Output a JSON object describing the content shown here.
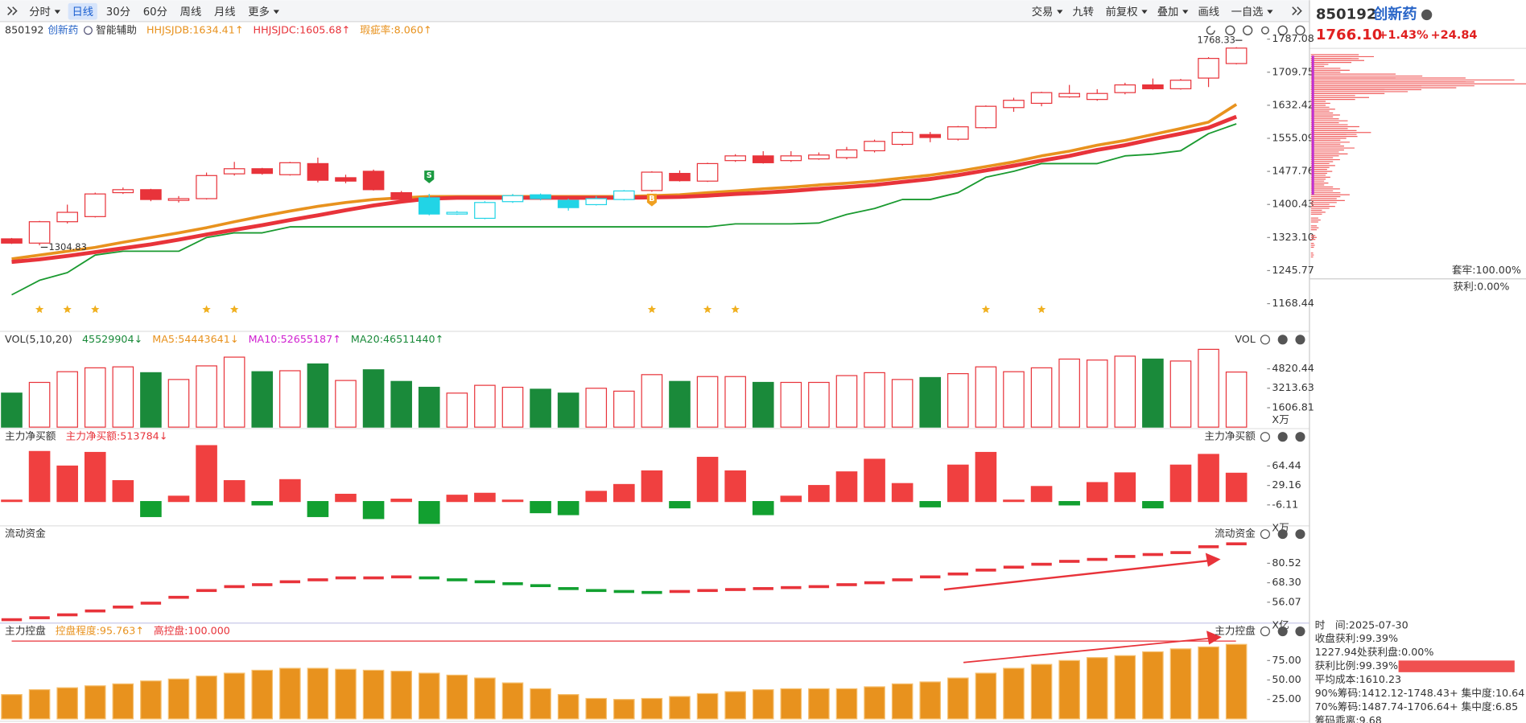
{
  "toolbar": {
    "left": [
      "分时",
      "日线",
      "30分",
      "60分",
      "周线",
      "月线",
      "更多"
    ],
    "right": [
      "交易",
      "九转",
      "前复权",
      "叠加",
      "画线",
      "一自选"
    ]
  },
  "quote": {
    "code": "850192",
    "name": "创新药",
    "price": "1766.10",
    "change_pct": "+1.43%",
    "change": "+24.84"
  },
  "chip_stats": {
    "trapped": "套牢:100.00%",
    "profit": "获利:0.00%",
    "lines": [
      "时　间:2025-07-30",
      "收盘获利:99.39%",
      "1227.94处获利盘:0.00%"
    ],
    "profit_ratio": {
      "label": "获利比例:99.39%",
      "value": 99.39
    },
    "more_lines": [
      "平均成本:1610.23",
      "90%筹码:1412.12-1748.43+ 集中度:10.64",
      "70%筹码:1487.74-1706.64+ 集中度:6.85",
      "筹码乖离:9.68"
    ]
  },
  "chart_data": [
    {
      "type": "candlestick",
      "code": "850192",
      "name": "创新药",
      "indicator": "智能辅助",
      "legend": [
        {
          "label": "HHJSJDB:1634.41↑",
          "color": "#e8921e"
        },
        {
          "label": "HHJSJDC:1605.68↑",
          "color": "#e8333a"
        },
        {
          "label": "瑕疵率:8.060↑",
          "color": "#e8921e"
        }
      ],
      "open": [
        1320,
        1310,
        1360,
        1372,
        1428,
        1435,
        1410,
        1414,
        1472,
        1484,
        1470,
        1496,
        1463,
        1478,
        1428,
        1416,
        1378,
        1368,
        1407,
        1423,
        1410,
        1400,
        1412,
        1433,
        1473,
        1455,
        1503,
        1514,
        1503,
        1507,
        1510,
        1526,
        1541,
        1564,
        1553,
        1580,
        1627,
        1637,
        1652,
        1646,
        1662,
        1680,
        1671,
        1696,
        1730
      ],
      "high": [
        1322,
        1362,
        1400,
        1428,
        1440,
        1437,
        1420,
        1475,
        1500,
        1486,
        1500,
        1510,
        1470,
        1482,
        1432,
        1425,
        1385,
        1408,
        1425,
        1426,
        1414,
        1420,
        1434,
        1478,
        1480,
        1498,
        1518,
        1525,
        1525,
        1522,
        1535,
        1552,
        1572,
        1570,
        1584,
        1632,
        1650,
        1664,
        1680,
        1670,
        1685,
        1695,
        1694,
        1745,
        1768.33
      ],
      "low": [
        1308,
        1304.83,
        1356,
        1370,
        1425,
        1408,
        1405,
        1412,
        1468,
        1470,
        1468,
        1452,
        1450,
        1433,
        1410,
        1375,
        1376,
        1366,
        1404,
        1410,
        1386,
        1398,
        1410,
        1430,
        1454,
        1453,
        1500,
        1496,
        1500,
        1505,
        1506,
        1522,
        1538,
        1546,
        1550,
        1578,
        1617,
        1630,
        1650,
        1643,
        1658,
        1669,
        1669,
        1675,
        1728
      ],
      "close": [
        1310,
        1360,
        1382,
        1425,
        1435,
        1412,
        1414,
        1468,
        1484,
        1473,
        1498,
        1457,
        1455,
        1435,
        1412,
        1378,
        1382,
        1405,
        1421,
        1414,
        1393,
        1414,
        1432,
        1476,
        1456,
        1496,
        1514,
        1498,
        1514,
        1516,
        1528,
        1548,
        1569,
        1557,
        1582,
        1630,
        1644,
        1662,
        1660,
        1660,
        1680,
        1671,
        1691,
        1742,
        1766.1
      ],
      "colors": [
        "#e8333a",
        "#e8333a",
        "#e8333a",
        "#e8333a",
        "#e8333a",
        "#e8333a",
        "#e8333a",
        "#e8333a",
        "#e8333a",
        "#e8333a",
        "#e8333a",
        "#e8333a",
        "#e8333a",
        "#e8333a",
        "#e8333a",
        "#21d4e6",
        "#21d4e6",
        "#21d4e6",
        "#21d4e6",
        "#21d4e6",
        "#21d4e6",
        "#21d4e6",
        "#21d4e6",
        "#e8333a",
        "#e8333a",
        "#e8333a",
        "#e8333a",
        "#e8333a",
        "#e8333a",
        "#e8333a",
        "#e8333a",
        "#e8333a",
        "#e8333a",
        "#e8333a",
        "#e8333a",
        "#e8333a",
        "#e8333a",
        "#e8333a",
        "#e8333a",
        "#e8333a",
        "#e8333a",
        "#e8333a",
        "#e8333a",
        "#e8333a",
        "#e8333a"
      ],
      "series": [
        {
          "name": "HHJSJDB",
          "color": "#e8921e",
          "width": 3,
          "values": [
            1273,
            1282,
            1291,
            1300,
            1312,
            1323,
            1334,
            1346,
            1360,
            1373,
            1385,
            1396,
            1405,
            1412,
            1416,
            1419,
            1419,
            1419,
            1419,
            1419,
            1419,
            1419,
            1419,
            1421,
            1423,
            1428,
            1432,
            1437,
            1441,
            1446,
            1450,
            1455,
            1462,
            1469,
            1478,
            1489,
            1500,
            1514,
            1525,
            1539,
            1550,
            1564,
            1578,
            1593,
            1634.41
          ]
        },
        {
          "name": "HHJSJDC",
          "color": "#e8333a",
          "width": 4,
          "values": [
            1266,
            1272,
            1280,
            1289,
            1298,
            1307,
            1318,
            1330,
            1341,
            1352,
            1364,
            1375,
            1387,
            1398,
            1407,
            1414,
            1416,
            1416,
            1416,
            1416,
            1416,
            1416,
            1416,
            1417,
            1418,
            1421,
            1425,
            1428,
            1432,
            1437,
            1441,
            1446,
            1453,
            1460,
            1469,
            1480,
            1491,
            1503,
            1514,
            1528,
            1539,
            1553,
            1566,
            1580,
            1605.68
          ]
        },
        {
          "color": "#1a9a30",
          "width": 1.5,
          "values": [
            1189,
            1223,
            1241,
            1282,
            1291,
            1291,
            1291,
            1323,
            1334,
            1334,
            1348,
            1348,
            1348,
            1348,
            1348,
            1348,
            1348,
            1348,
            1348,
            1348,
            1348,
            1348,
            1348,
            1348,
            1348,
            1348,
            1355,
            1355,
            1355,
            1357,
            1377,
            1391,
            1412,
            1412,
            1428,
            1464,
            1478,
            1496,
            1496,
            1496,
            1514,
            1518,
            1526,
            1566,
            1589
          ]
        }
      ],
      "signals": [
        {
          "label": "S",
          "index": 15,
          "color": "#1a9a40"
        },
        {
          "label": "B",
          "index": 23,
          "color": "#f0a020"
        }
      ],
      "stars": [
        1,
        2,
        3,
        7,
        8,
        23,
        25,
        26,
        35,
        37
      ],
      "ylim": [
        1168.44,
        1787.08
      ],
      "yticks": [
        1168.44,
        1245.77,
        {
          "value": 1323.1,
          "label": "1323.10"
        },
        1400.43,
        1477.76,
        1555.09,
        1632.42,
        1709.75,
        1787.08
      ]
    },
    {
      "type": "bar",
      "title": "VOL(5,10,20)",
      "right_title": "VOL",
      "unit": "X万",
      "legend": [
        {
          "label": "45529904↓",
          "color": "#1a8a3a"
        },
        {
          "label": "MA5:54443641↓",
          "color": "#e8921e"
        },
        {
          "label": "MA10:52655187↑",
          "color": "#d020d0"
        },
        {
          "label": "MA20:46511440↑",
          "color": "#1a8a3a"
        }
      ],
      "values": [
        2812,
        3696,
        4580,
        4900,
        4981,
        4499,
        3937,
        5061,
        5784,
        4580,
        4660,
        5222,
        3856,
        4740,
        3776,
        3294,
        2812,
        3455,
        3294,
        3133,
        2812,
        3213,
        2973,
        4338,
        3776,
        4178,
        4178,
        3696,
        3696,
        3696,
        4258,
        4499,
        3937,
        4097,
        4419,
        4981,
        4580,
        4900,
        5624,
        5543,
        5865,
        5624,
        5463,
        6427,
        4553
      ],
      "colors": [
        "#1a8a3a",
        "#e8333a",
        "#e8333a",
        "#e8333a",
        "#e8333a",
        "#1a8a3a",
        "#e8333a",
        "#e8333a",
        "#e8333a",
        "#1a8a3a",
        "#e8333a",
        "#1a8a3a",
        "#e8333a",
        "#1a8a3a",
        "#1a8a3a",
        "#1a8a3a",
        "#e8333a",
        "#e8333a",
        "#e8333a",
        "#1a8a3a",
        "#1a8a3a",
        "#e8333a",
        "#e8333a",
        "#e8333a",
        "#1a8a3a",
        "#e8333a",
        "#e8333a",
        "#1a8a3a",
        "#e8333a",
        "#e8333a",
        "#e8333a",
        "#e8333a",
        "#e8333a",
        "#1a8a3a",
        "#e8333a",
        "#e8333a",
        "#e8333a",
        "#e8333a",
        "#e8333a",
        "#e8333a",
        "#e8333a",
        "#1a8a3a",
        "#e8333a",
        "#e8333a",
        "#e8333a"
      ],
      "down_color": "#1a8a3a",
      "ylim": [
        0,
        6427.24
      ],
      "yticks": [
        1606.81,
        3213.63,
        4820.44
      ]
    },
    {
      "type": "bar",
      "title": "主力净买额",
      "right_title": "主力净买额",
      "unit": "X万",
      "legend": [
        {
          "label": "主力净买额:513784↓",
          "color": "#e8333a"
        }
      ],
      "values": [
        2.6,
        90.8,
        64.4,
        89.1,
        37.9,
        -27.3,
        9.7,
        101.4,
        37.9,
        -6.2,
        39.7,
        -27.3,
        13.2,
        -30.9,
        4.4,
        -39.7,
        11.5,
        15.0,
        2.6,
        -20.3,
        -23.8,
        18.5,
        30.9,
        55.6,
        -11.5,
        80.2,
        55.6,
        -23.8,
        9.7,
        29.1,
        53.8,
        76.7,
        32.6,
        -9.7,
        66.1,
        89.1,
        2.6,
        27.3,
        -6.2,
        34.4,
        52.0,
        -11.5,
        66.1,
        85.5,
        51.38
      ],
      "up_color": "#f04040",
      "down_color": "#12a030",
      "ylim": [
        -43.2,
        106.7
      ],
      "yticks": [
        -6.11,
        29.16,
        64.44
      ]
    },
    {
      "type": "step-segment",
      "title": "流动资金",
      "right_title": "流动资金",
      "unit": "X亿",
      "values": [
        45.08,
        46.3,
        48.14,
        50.58,
        53.02,
        55.47,
        59.15,
        63.41,
        65.86,
        67.08,
        68.91,
        70.13,
        71.35,
        71.35,
        71.97,
        71.35,
        70.13,
        68.91,
        67.69,
        66.47,
        64.63,
        63.41,
        62.8,
        62.19,
        62.8,
        63.41,
        64.02,
        64.63,
        65.24,
        65.86,
        67.08,
        68.3,
        70.13,
        71.97,
        73.8,
        76.24,
        78.08,
        79.91,
        81.74,
        82.96,
        84.8,
        86.02,
        87.24,
        90.91,
        92.74
      ],
      "up_color": "#e8333a",
      "down_color": "#12a030",
      "ylim": [
        43.25,
        95.18
      ],
      "yticks": [
        56.07,
        {
          "value": 68.3,
          "label": "68.30"
        },
        80.52
      ]
    },
    {
      "type": "bar",
      "title": "主力控盘",
      "right_title": "主力控盘",
      "legend": [
        {
          "label": "控盘程度:95.763↑",
          "color": "#e8921e"
        },
        {
          "label": "高控盘:100.000",
          "color": "#e8333a"
        }
      ],
      "values": [
        31.25,
        37.5,
        40,
        42.5,
        45,
        48.75,
        51.25,
        55,
        58.75,
        62.5,
        65,
        65,
        63.75,
        62.5,
        61.25,
        58.75,
        56.25,
        52.5,
        46.25,
        38.75,
        31.25,
        26.25,
        25,
        26.25,
        28.75,
        32.5,
        35,
        37.5,
        38.75,
        38.75,
        38.75,
        41.25,
        45,
        47.5,
        52.5,
        58.75,
        65,
        70,
        75,
        78.75,
        81.25,
        86.25,
        90,
        92.5,
        95.763
      ],
      "color": "#e8921e",
      "ylim": [
        0,
        105
      ],
      "yticks": [
        {
          "value": 25,
          "label": "25.00"
        },
        {
          "value": 50,
          "label": "50.00"
        },
        {
          "value": 75,
          "label": "75.00"
        }
      ]
    },
    {
      "type": "chip-profile",
      "y": [
        1746.1,
        1737.1,
        1728.0,
        1714.3,
        1700.7,
        1691.6,
        1682.5,
        1673.4,
        1664.3,
        1650.6,
        1637.0,
        1623.3,
        1609.7,
        1596.1,
        1582.4,
        1568.7,
        1559.6,
        1546.0,
        1532.4,
        1518.7,
        1505.1,
        1491.4,
        1477.8,
        1464.1,
        1450.5,
        1436.8,
        1423.2,
        1409.5,
        1395.9,
        1382.3,
        1364.0,
        1345.8,
        1323.2,
        1304.9,
        1282.2
      ],
      "values": [
        65,
        55,
        18,
        40,
        115,
        210,
        222,
        150,
        100,
        60,
        20,
        25,
        30,
        38,
        50,
        62,
        48,
        40,
        45,
        38,
        30,
        25,
        22,
        20,
        18,
        30,
        40,
        35,
        25,
        15,
        10,
        8,
        6,
        4,
        3
      ],
      "color": "#f06060",
      "xlim": [
        0,
        222
      ],
      "ylim": [
        1168.44,
        1787.08
      ]
    }
  ]
}
